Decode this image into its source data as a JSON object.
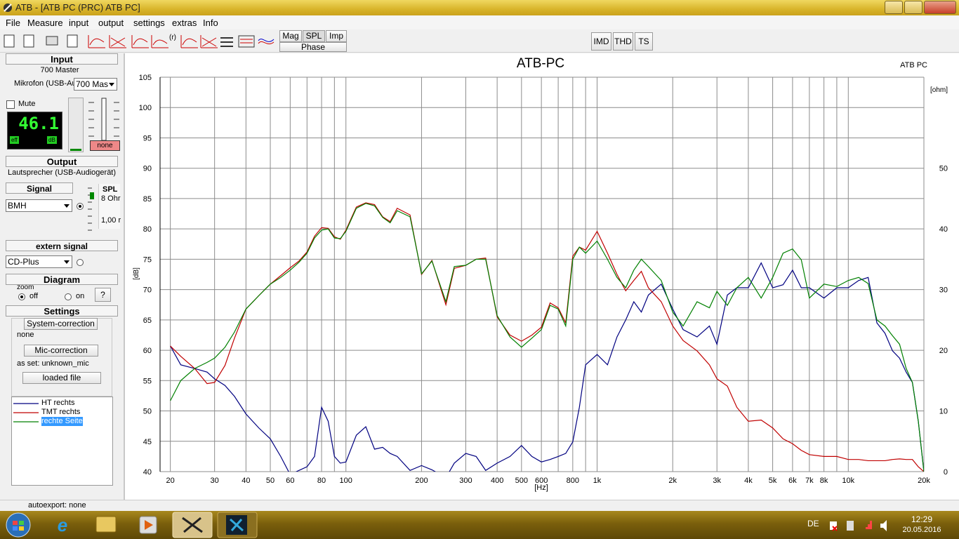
{
  "window": {
    "title": "ATB - [ATB PC (PRC)  ATB PC]"
  },
  "menu": [
    "File",
    "Measure",
    "input",
    "output",
    "settings",
    "extras",
    "Info"
  ],
  "toolbar": {
    "r_label": "(r)",
    "mode_buttons": [
      "Mag",
      "SPL",
      "Imp"
    ],
    "phase": "Phase",
    "right_buttons": [
      "IMD",
      "THD",
      "TS"
    ]
  },
  "panel": {
    "input_heading": "Input",
    "device": "700 Master",
    "mic_label": "Mikrofon (USB-Au",
    "mic_select": "700 Mas",
    "mute": "Mute",
    "level": "46.1",
    "level_left": "eff",
    "level_right": "dB",
    "level_select": "none",
    "output_heading": "Output",
    "output_device": "Lautsprecher (USB-Audiogerät)",
    "signal_heading": "Signal",
    "signal_select": "BMH",
    "spl": "SPL",
    "spl_load": "8 Ohr",
    "spl_level": "1,00 r",
    "extern_heading": "extern signal",
    "extern_select": "CD-Plus",
    "diagram_heading": "Diagram",
    "zoom": "zoom",
    "off": "off",
    "on": "on",
    "help": "?",
    "settings_heading": "Settings",
    "system_correction": "System-correction",
    "system_correction_value": "none",
    "mic_correction": "Mic-correction",
    "mic_correction_value": "as set: unknown_mic",
    "loaded_file": "loaded file"
  },
  "chart_data": {
    "type": "line",
    "title": "ATB-PC",
    "corner_label": "ATB PC",
    "x_label": "[Hz]",
    "y_label": "[dB]",
    "y2_label": "[ohm]",
    "x_scale": "log",
    "grid": true,
    "xlim": [
      18.2,
      20000
    ],
    "xticks": [
      20,
      30,
      40,
      50,
      60,
      80,
      100,
      200,
      300,
      400,
      500,
      600,
      800,
      {
        "value": 1000,
        "label": "1k"
      },
      {
        "value": 2000,
        "label": "2k"
      },
      {
        "value": 3000,
        "label": "3k"
      },
      {
        "value": 4000,
        "label": "4k"
      },
      {
        "value": 5000,
        "label": "5k"
      },
      {
        "value": 6000,
        "label": "6k"
      },
      {
        "value": 7000,
        "label": "7k"
      },
      {
        "value": 8000,
        "label": "8k"
      },
      {
        "value": 10000,
        "label": "10k"
      },
      {
        "value": 20000,
        "label": "20k"
      }
    ],
    "xminor": [
      70,
      90,
      700,
      900,
      9000
    ],
    "ylim": [
      40,
      105
    ],
    "yticks": [
      40,
      45,
      50,
      55,
      60,
      65,
      70,
      75,
      80,
      85,
      90,
      95,
      100,
      105
    ],
    "y2lim": [
      0,
      65
    ],
    "y2ticks": [
      0,
      10,
      20,
      30,
      40,
      50
    ],
    "x": [
      20,
      22,
      25,
      28,
      30,
      33,
      36,
      40,
      45,
      50,
      55,
      60,
      65,
      70,
      75,
      80,
      85,
      90,
      95,
      100,
      110,
      120,
      130,
      140,
      150,
      160,
      180,
      200,
      220,
      250,
      270,
      300,
      330,
      360,
      400,
      450,
      500,
      550,
      600,
      650,
      700,
      750,
      800,
      850,
      900,
      1000,
      1100,
      1200,
      1300,
      1400,
      1500,
      1600,
      1800,
      2000,
      2200,
      2500,
      2800,
      3000,
      3300,
      3600,
      4000,
      4500,
      5000,
      5500,
      6000,
      6500,
      7000,
      8000,
      9000,
      10000,
      11000,
      12000,
      13000,
      14000,
      15000,
      16000,
      17000,
      18000,
      19000,
      20000
    ],
    "series": [
      {
        "name": "HT rechts",
        "color": "#000080",
        "values": [
          60.7,
          57.6,
          57,
          56.4,
          55.3,
          54.2,
          52.4,
          49.5,
          47.2,
          45.4,
          42.5,
          39.5,
          40.2,
          40.8,
          42.5,
          50.6,
          48.3,
          42.5,
          41.4,
          41.6,
          46,
          47.4,
          43.7,
          44,
          43,
          42.5,
          40.2,
          41,
          40.3,
          39,
          41.4,
          43,
          42.5,
          40.2,
          41.4,
          42.5,
          44.3,
          42.5,
          41.6,
          42,
          42.5,
          43,
          44.9,
          50.6,
          57.6,
          59.3,
          57.6,
          62.2,
          65,
          68,
          66.3,
          69.1,
          70.9,
          66.8,
          63.4,
          62.2,
          64,
          61,
          69.1,
          70.3,
          70.3,
          74.4,
          70.3,
          70.8,
          73.2,
          70.3,
          70.3,
          68.6,
          70.3,
          70.3,
          71.5,
          72,
          64.5,
          62.8,
          59.9,
          58.7,
          56.4,
          54.7,
          48.3,
          40
        ]
      },
      {
        "name": "TMT rechts",
        "color": "#c00000",
        "values": [
          60.7,
          59,
          57,
          54.5,
          54.7,
          57.5,
          62,
          66.8,
          69,
          70.9,
          72.3,
          73.6,
          74.7,
          76.2,
          78.8,
          80.2,
          80.1,
          78.7,
          78.3,
          79.8,
          83.6,
          84.3,
          84,
          82,
          81.2,
          83.4,
          82.3,
          72.5,
          74.8,
          67.5,
          73.5,
          74,
          75,
          75.2,
          65.5,
          62.5,
          61.5,
          62.5,
          63.8,
          67.8,
          67,
          64.5,
          75.5,
          77,
          76.5,
          79.6,
          76,
          72.5,
          69.8,
          71.5,
          73,
          70.3,
          68,
          64,
          61.6,
          59.9,
          57.6,
          55.3,
          54.1,
          50.6,
          48.3,
          48.5,
          47.2,
          45.4,
          44.6,
          43.5,
          42.8,
          42.5,
          42.5,
          42,
          42,
          41.8,
          41.8,
          41.8,
          42,
          42.1,
          42,
          42,
          40.8,
          40
        ]
      },
      {
        "name": "rechte Seite",
        "color": "#008000",
        "values": [
          51.7,
          55,
          57,
          58,
          58.7,
          60.5,
          63,
          66.8,
          69,
          70.9,
          72,
          73.2,
          74.5,
          76,
          78.5,
          79.8,
          80,
          78.5,
          78.4,
          79.6,
          83.4,
          84.2,
          83.8,
          81.9,
          81,
          83,
          82,
          72.6,
          74.7,
          68,
          73.8,
          74,
          75,
          75,
          65.7,
          62.2,
          60.5,
          62,
          63.4,
          67.4,
          66.8,
          64,
          75,
          77,
          76,
          78,
          75,
          72,
          70.3,
          73.2,
          75,
          73.8,
          71.5,
          66.3,
          64,
          68,
          67,
          69.7,
          67.4,
          70.3,
          72,
          68.6,
          72,
          76,
          76.7,
          74.9,
          68.6,
          70.9,
          70.5,
          71.5,
          72,
          71,
          65,
          64,
          62.4,
          61,
          57,
          54.7,
          48.3,
          40
        ]
      }
    ]
  },
  "status": "autoexport: none",
  "taskbar": {
    "language": "DE",
    "time": "12:29",
    "date": "20.05.2016"
  }
}
